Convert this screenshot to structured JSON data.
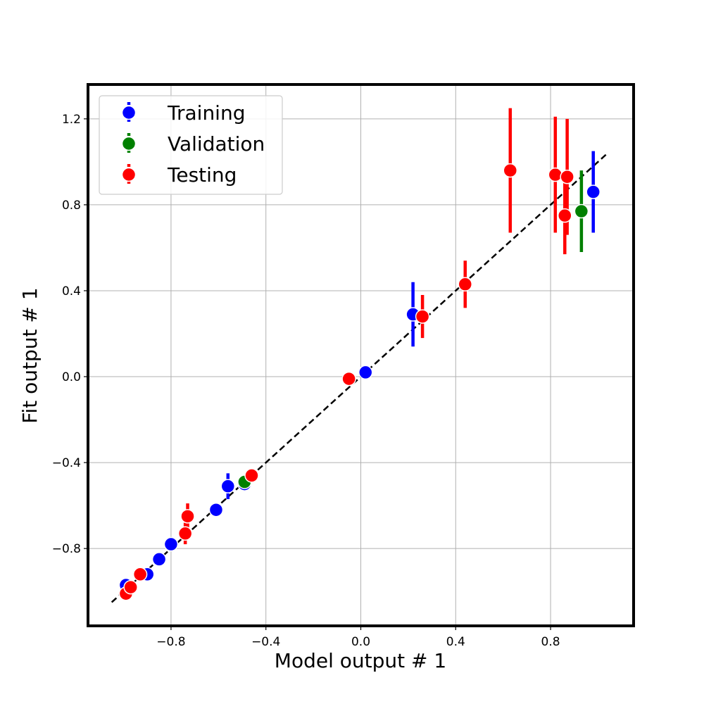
{
  "chart_data": {
    "type": "scatter",
    "title": "",
    "xlabel": "Model output # 1",
    "ylabel": "Fit output # 1",
    "xlim": [
      -1.15,
      1.15
    ],
    "ylim": [
      -1.16,
      1.36
    ],
    "xticks": [
      -0.8,
      -0.4,
      0.0,
      0.4,
      0.8
    ],
    "yticks": [
      -0.8,
      -0.4,
      0.0,
      0.4,
      0.8,
      1.2
    ],
    "xtick_labels": [
      "−0.8",
      "−0.4",
      "0.0",
      "0.4",
      "0.8"
    ],
    "ytick_labels": [
      "−0.8",
      "−0.4",
      "0.0",
      "0.4",
      "0.8",
      "1.2"
    ],
    "grid": true,
    "legend_position": "top-left",
    "identity_line": {
      "from": [
        -1.05,
        -1.05
      ],
      "to": [
        1.04,
        1.04
      ],
      "style": "dashed",
      "color": "#000000"
    },
    "series": [
      {
        "name": "Training",
        "color": "#0000ff",
        "points": [
          {
            "x": -0.99,
            "y": -0.97,
            "yerr": 0.02
          },
          {
            "x": -0.9,
            "y": -0.92,
            "yerr": 0.02
          },
          {
            "x": -0.85,
            "y": -0.85,
            "yerr": 0.02
          },
          {
            "x": -0.8,
            "y": -0.78,
            "yerr": 0.03
          },
          {
            "x": -0.61,
            "y": -0.62,
            "yerr": 0.02
          },
          {
            "x": -0.56,
            "y": -0.51,
            "yerr": 0.06
          },
          {
            "x": -0.49,
            "y": -0.5,
            "yerr": 0.02
          },
          {
            "x": 0.02,
            "y": 0.02,
            "yerr": 0.02
          },
          {
            "x": 0.22,
            "y": 0.29,
            "yerr": 0.15
          },
          {
            "x": 0.98,
            "y": 0.86,
            "yerr": 0.19
          }
        ]
      },
      {
        "name": "Validation",
        "color": "#008000",
        "points": [
          {
            "x": -0.49,
            "y": -0.49,
            "yerr": 0.02
          },
          {
            "x": 0.93,
            "y": 0.77,
            "yerr": 0.19
          }
        ]
      },
      {
        "name": "Testing",
        "color": "#ff0000",
        "points": [
          {
            "x": -0.99,
            "y": -1.01,
            "yerr": 0.02
          },
          {
            "x": -0.97,
            "y": -0.98,
            "yerr": 0.02
          },
          {
            "x": -0.93,
            "y": -0.92,
            "yerr": 0.02
          },
          {
            "x": -0.74,
            "y": -0.73,
            "yerr": 0.05
          },
          {
            "x": -0.73,
            "y": -0.65,
            "yerr": 0.06
          },
          {
            "x": -0.46,
            "y": -0.46,
            "yerr": 0.02
          },
          {
            "x": -0.05,
            "y": -0.01,
            "yerr": 0.02
          },
          {
            "x": 0.26,
            "y": 0.28,
            "yerr": 0.1
          },
          {
            "x": 0.44,
            "y": 0.43,
            "yerr": 0.11
          },
          {
            "x": 0.63,
            "y": 0.96,
            "yerr": 0.29
          },
          {
            "x": 0.82,
            "y": 0.94,
            "yerr": 0.27
          },
          {
            "x": 0.86,
            "y": 0.75,
            "yerr": 0.18
          },
          {
            "x": 0.87,
            "y": 0.93,
            "yerr": 0.27
          }
        ]
      }
    ]
  }
}
